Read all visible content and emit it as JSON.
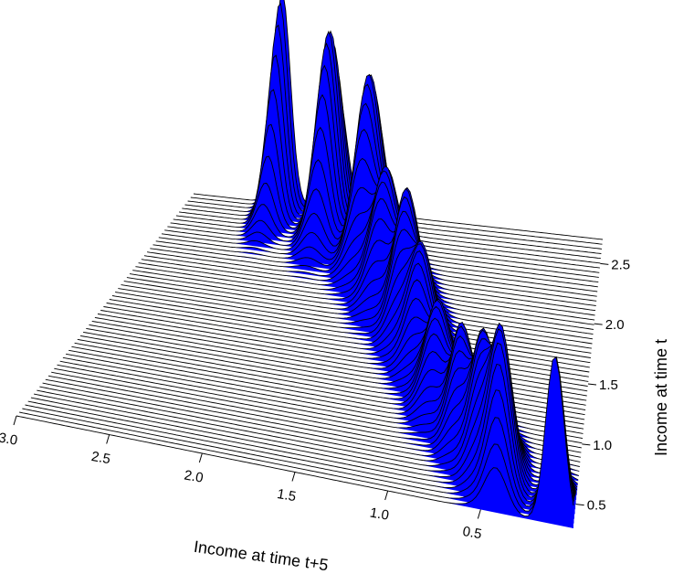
{
  "chart_data": {
    "type": "surface",
    "title": "",
    "xlabel": "Income at time t+5",
    "ylabel": "Income at time t",
    "x_ticks": [
      {
        "value": 0.5,
        "label": "0.5"
      },
      {
        "value": 1.0,
        "label": "1.0"
      },
      {
        "value": 1.5,
        "label": "1.5"
      },
      {
        "value": 2.0,
        "label": "2.0"
      },
      {
        "value": 2.5,
        "label": "2.5"
      },
      {
        "value": 3.0,
        "label": "3.0"
      }
    ],
    "y_ticks": [
      {
        "value": 0.5,
        "label": "0.5"
      },
      {
        "value": 1.0,
        "label": "1.0"
      },
      {
        "value": 1.5,
        "label": "1.5"
      },
      {
        "value": 2.0,
        "label": "2.0"
      },
      {
        "value": 2.5,
        "label": "2.5"
      }
    ],
    "xlim": [
      0.0,
      3.0
    ],
    "ylim": [
      0.3,
      2.7
    ],
    "surface_color": "#0000ff",
    "line_color": "#000000",
    "peaks": [
      {
        "x": 0.1,
        "y": 0.3,
        "height": 1.0,
        "width": 0.05
      },
      {
        "x": 0.42,
        "y": 0.55,
        "height": 0.9,
        "width": 0.06
      },
      {
        "x": 0.55,
        "y": 0.75,
        "height": 0.7,
        "width": 0.06
      },
      {
        "x": 0.7,
        "y": 0.95,
        "height": 0.6,
        "width": 0.06
      },
      {
        "x": 0.88,
        "y": 1.2,
        "height": 0.55,
        "width": 0.07
      },
      {
        "x": 1.05,
        "y": 1.55,
        "height": 0.6,
        "width": 0.07
      },
      {
        "x": 1.2,
        "y": 1.8,
        "height": 0.75,
        "width": 0.07
      },
      {
        "x": 1.4,
        "y": 2.05,
        "height": 0.7,
        "width": 0.08
      },
      {
        "x": 1.6,
        "y": 2.35,
        "height": 1.05,
        "width": 0.08
      },
      {
        "x": 1.95,
        "y": 2.55,
        "height": 1.15,
        "width": 0.07
      },
      {
        "x": 2.35,
        "y": 2.7,
        "height": 1.25,
        "width": 0.06
      }
    ]
  }
}
